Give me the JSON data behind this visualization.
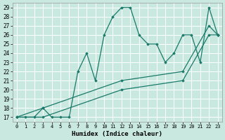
{
  "xlabel": "Humidex (Indice chaleur)",
  "bg_color": "#c8e8e0",
  "line_color": "#1a7a6a",
  "grid_color": "#ffffff",
  "xlim": [
    -0.5,
    23.5
  ],
  "ylim": [
    16.5,
    29.5
  ],
  "xticks": [
    0,
    1,
    2,
    3,
    4,
    5,
    6,
    7,
    8,
    9,
    10,
    11,
    12,
    13,
    14,
    15,
    16,
    17,
    18,
    19,
    20,
    21,
    22,
    23
  ],
  "yticks": [
    17,
    18,
    19,
    20,
    21,
    22,
    23,
    24,
    25,
    26,
    27,
    28,
    29
  ],
  "series": [
    {
      "x": [
        0,
        1,
        2,
        3,
        4,
        5,
        6,
        7,
        8,
        9,
        10,
        11,
        12,
        13,
        14,
        15,
        16,
        17,
        18,
        19,
        20,
        21,
        22,
        23
      ],
      "y": [
        17,
        17,
        17,
        18,
        17,
        17,
        17,
        22,
        24,
        21,
        26,
        28,
        29,
        29,
        26,
        25,
        25,
        23,
        24,
        26,
        26,
        23,
        29,
        26
      ]
    },
    {
      "x": [
        0,
        3,
        12,
        19,
        22,
        23
      ],
      "y": [
        17,
        18,
        21,
        22,
        27,
        26
      ]
    },
    {
      "x": [
        0,
        3,
        12,
        19,
        22,
        23
      ],
      "y": [
        17,
        17,
        20,
        21,
        26,
        26
      ]
    }
  ]
}
